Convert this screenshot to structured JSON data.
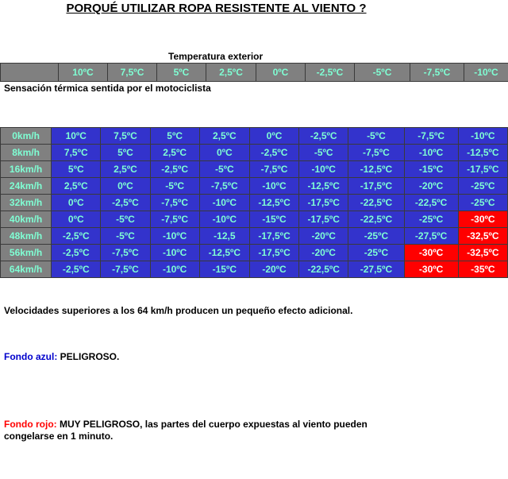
{
  "title": "PORQUÉ UTILIZAR ROPA RESISTENTE AL VIENTO ?",
  "temperature_label": "Temperatura exterior",
  "temperatures": [
    "10ºC",
    "7,5ºC",
    "5ºC",
    "2,5ºC",
    "0ºC",
    "-2,5ºC",
    "-5ºC",
    "-7,5ºC",
    "-10ºC"
  ],
  "subtitle": "Sensación térmica sentida por el motociclista",
  "rows": [
    {
      "speed": "0km/h",
      "cells": [
        {
          "v": "10ºC",
          "c": "blue"
        },
        {
          "v": "7,5ºC",
          "c": "blue"
        },
        {
          "v": "5ºC",
          "c": "blue"
        },
        {
          "v": "2,5ºC",
          "c": "blue"
        },
        {
          "v": "0ºC",
          "c": "blue"
        },
        {
          "v": "-2,5ºC",
          "c": "blue"
        },
        {
          "v": "-5ºC",
          "c": "blue"
        },
        {
          "v": "-7,5ºC",
          "c": "blue"
        },
        {
          "v": "-10ºC",
          "c": "blue"
        }
      ]
    },
    {
      "speed": "8km/h",
      "cells": [
        {
          "v": "7,5ºC",
          "c": "blue"
        },
        {
          "v": "5ºC",
          "c": "blue"
        },
        {
          "v": "2,5ºC",
          "c": "blue"
        },
        {
          "v": "0ºC",
          "c": "blue"
        },
        {
          "v": "-2,5ºC",
          "c": "blue"
        },
        {
          "v": "-5ºC",
          "c": "blue"
        },
        {
          "v": "-7,5ºC",
          "c": "blue"
        },
        {
          "v": "-10ºC",
          "c": "blue"
        },
        {
          "v": "-12,5ºC",
          "c": "blue"
        }
      ]
    },
    {
      "speed": "16km/h",
      "cells": [
        {
          "v": "5ºC",
          "c": "blue"
        },
        {
          "v": "2,5ºC",
          "c": "blue"
        },
        {
          "v": "-2,5ºC",
          "c": "blue"
        },
        {
          "v": "-5ºC",
          "c": "blue"
        },
        {
          "v": "-7,5ºC",
          "c": "blue"
        },
        {
          "v": "-10ºC",
          "c": "blue"
        },
        {
          "v": "-12,5ºC",
          "c": "blue"
        },
        {
          "v": "-15ºC",
          "c": "blue"
        },
        {
          "v": "-17,5ºC",
          "c": "blue"
        }
      ]
    },
    {
      "speed": "24km/h",
      "cells": [
        {
          "v": "2,5ºC",
          "c": "blue"
        },
        {
          "v": "0ºC",
          "c": "blue"
        },
        {
          "v": "-5ºC",
          "c": "blue"
        },
        {
          "v": "-7,5ºC",
          "c": "blue"
        },
        {
          "v": "-10ºC",
          "c": "blue"
        },
        {
          "v": "-12,5ºC",
          "c": "blue"
        },
        {
          "v": "-17,5ºC",
          "c": "blue"
        },
        {
          "v": "-20ºC",
          "c": "blue"
        },
        {
          "v": "-25ºC",
          "c": "blue"
        }
      ]
    },
    {
      "speed": "32km/h",
      "cells": [
        {
          "v": "0ºC",
          "c": "blue"
        },
        {
          "v": "-2,5ºC",
          "c": "blue"
        },
        {
          "v": "-7,5ºC",
          "c": "blue"
        },
        {
          "v": "-10ºC",
          "c": "blue"
        },
        {
          "v": "-12,5ºC",
          "c": "blue"
        },
        {
          "v": "-17,5ºC",
          "c": "blue"
        },
        {
          "v": "-22,5ºC",
          "c": "blue"
        },
        {
          "v": "-22,5ºC",
          "c": "blue"
        },
        {
          "v": "-25ºC",
          "c": "blue"
        }
      ]
    },
    {
      "speed": "40km/h",
      "cells": [
        {
          "v": "0ºC",
          "c": "blue"
        },
        {
          "v": "-5ºC",
          "c": "blue"
        },
        {
          "v": "-7,5ºC",
          "c": "blue"
        },
        {
          "v": "-10ºC",
          "c": "blue"
        },
        {
          "v": "-15ºC",
          "c": "blue"
        },
        {
          "v": "-17,5ºC",
          "c": "blue"
        },
        {
          "v": "-22,5ºC",
          "c": "blue"
        },
        {
          "v": "-25ºC",
          "c": "blue"
        },
        {
          "v": "-30ºC",
          "c": "red"
        }
      ]
    },
    {
      "speed": "48km/h",
      "cells": [
        {
          "v": "-2,5ºC",
          "c": "blue"
        },
        {
          "v": "-5ºC",
          "c": "blue"
        },
        {
          "v": "-10ºC",
          "c": "blue"
        },
        {
          "v": "-12,5",
          "c": "blue"
        },
        {
          "v": "-17,5ºC",
          "c": "blue"
        },
        {
          "v": "-20ºC",
          "c": "blue"
        },
        {
          "v": "-25ºC",
          "c": "blue"
        },
        {
          "v": "-27,5ºC",
          "c": "blue"
        },
        {
          "v": "-32,5ºC",
          "c": "red"
        }
      ]
    },
    {
      "speed": "56km/h",
      "cells": [
        {
          "v": "-2,5ºC",
          "c": "blue"
        },
        {
          "v": "-7,5ºC",
          "c": "blue"
        },
        {
          "v": "-10ºC",
          "c": "blue"
        },
        {
          "v": "-12,5ºC",
          "c": "blue"
        },
        {
          "v": "-17,5ºC",
          "c": "blue"
        },
        {
          "v": "-20ºC",
          "c": "blue"
        },
        {
          "v": "-25ºC",
          "c": "blue"
        },
        {
          "v": "-30ºC",
          "c": "red"
        },
        {
          "v": "-32,5ºC",
          "c": "red"
        }
      ]
    },
    {
      "speed": "64km/h",
      "cells": [
        {
          "v": "-2,5ºC",
          "c": "blue"
        },
        {
          "v": "-7,5ºC",
          "c": "blue"
        },
        {
          "v": "-10ºC",
          "c": "blue"
        },
        {
          "v": "-15ºC",
          "c": "blue"
        },
        {
          "v": "-20ºC",
          "c": "blue"
        },
        {
          "v": "-22,5ºC",
          "c": "blue"
        },
        {
          "v": "-27,5ºC",
          "c": "blue"
        },
        {
          "v": "-30ºC",
          "c": "red"
        },
        {
          "v": "-35ºC",
          "c": "red"
        }
      ]
    }
  ],
  "notes": {
    "speed_note": "Velocidades superiores a los 64 km/h producen un pequeño efecto adicional.",
    "blue_label": "Fondo azul:",
    "blue_text": " PELIGROSO.",
    "red_label": "Fondo rojo:",
    "red_text": " MUY PELIGROSO, las partes del cuerpo expuestas al viento pueden congelarse en 1 minuto."
  },
  "colors": {
    "blue": "#3333cc",
    "red": "#ff0000",
    "label_gray": "#808080",
    "cell_text": "#7fffd4"
  }
}
